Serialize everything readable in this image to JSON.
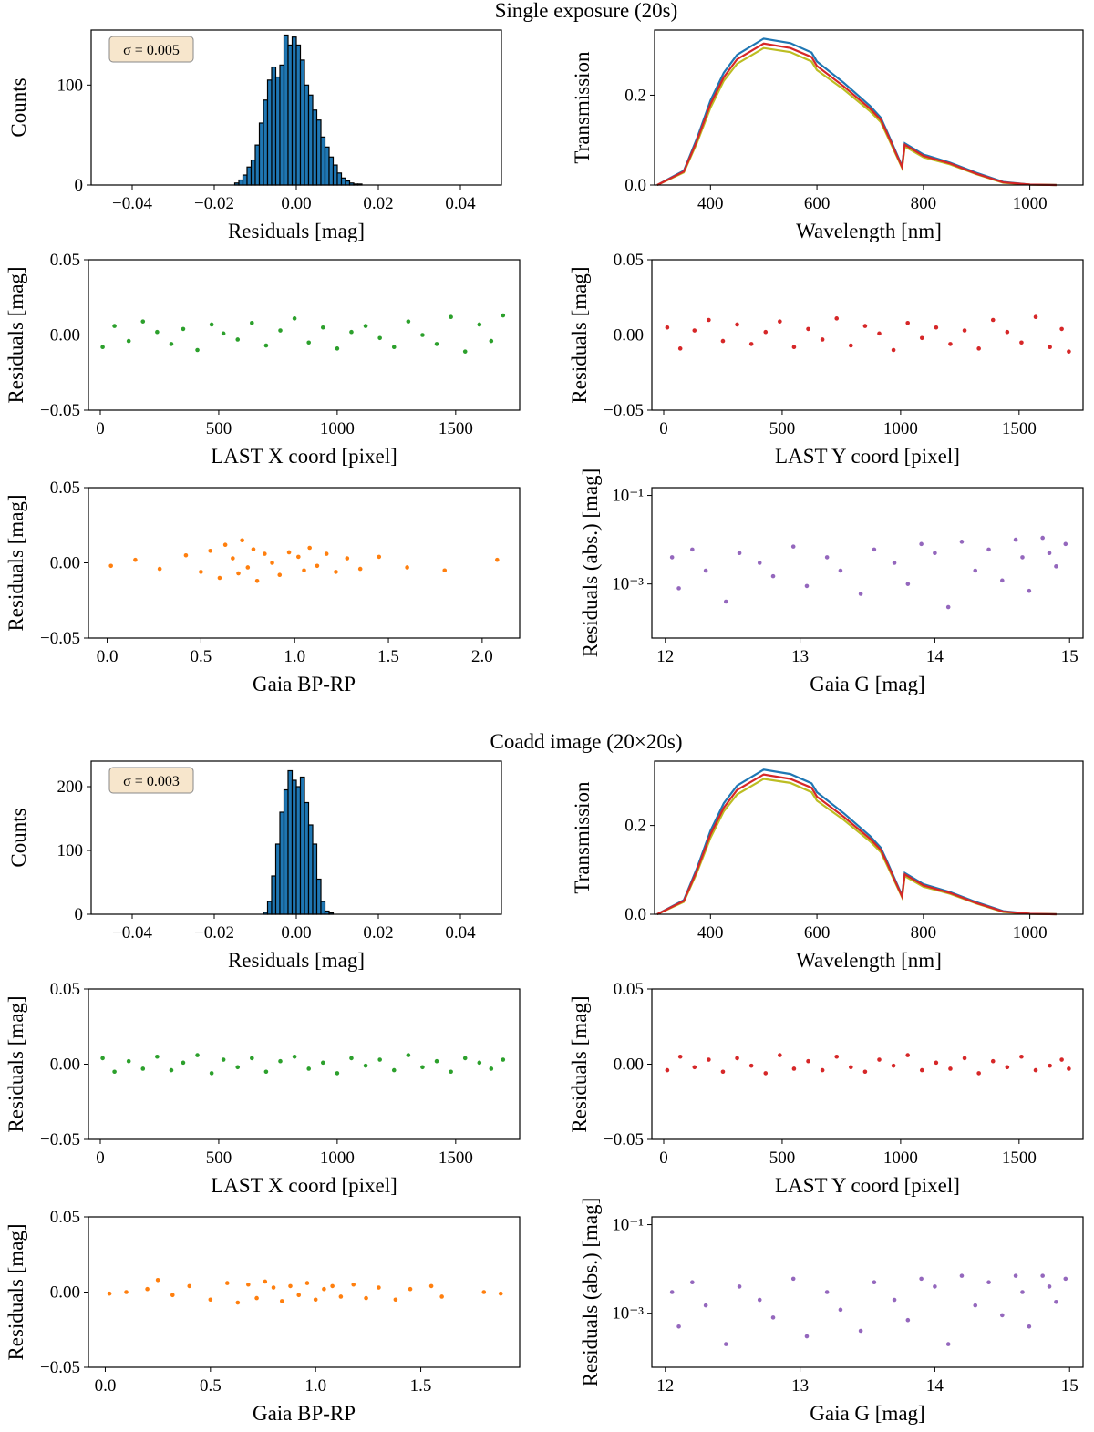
{
  "chart_data": [
    {
      "type": "histogram",
      "title": "Single exposure (20s)",
      "annotation": "σ = 0.005",
      "xlabel": "Residuals [mag]",
      "ylabel": "Counts",
      "color": "#1f77b4",
      "bins": [
        -0.015,
        -0.014,
        -0.013,
        -0.012,
        -0.011,
        -0.01,
        -0.009,
        -0.008,
        -0.007,
        -0.006,
        -0.005,
        -0.004,
        -0.003,
        -0.002,
        -0.001,
        0,
        0.001,
        0.002,
        0.003,
        0.004,
        0.005,
        0.006,
        0.007,
        0.008,
        0.009,
        0.01,
        0.011,
        0.012,
        0.013,
        0.014,
        0.015,
        0.016
      ],
      "counts": [
        2,
        5,
        10,
        18,
        25,
        40,
        62,
        85,
        105,
        118,
        108,
        120,
        150,
        140,
        148,
        140,
        125,
        100,
        90,
        75,
        65,
        48,
        38,
        28,
        20,
        12,
        7,
        4,
        2,
        1,
        1
      ],
      "xlim": [
        -0.05,
        0.05
      ],
      "xticks": [
        {
          "value": -0.04,
          "label": "−0.04"
        },
        {
          "value": -0.02,
          "label": "−0.02"
        },
        {
          "value": 0,
          "label": "0.00"
        },
        {
          "value": 0.02,
          "label": "0.02"
        },
        {
          "value": 0.04,
          "label": "0.04"
        }
      ],
      "ylim": [
        0,
        155
      ],
      "yticks": [
        0,
        100
      ]
    },
    {
      "type": "line",
      "xlabel": "Wavelength [nm]",
      "ylabel": "Transmission",
      "x": [
        300,
        350,
        375,
        400,
        425,
        450,
        500,
        550,
        590,
        600,
        650,
        700,
        720,
        730,
        760,
        765,
        800,
        850,
        900,
        950,
        1000,
        1050
      ],
      "series": [
        {
          "color": "#1f77b4",
          "values": [
            0,
            0.032,
            0.105,
            0.188,
            0.25,
            0.29,
            0.326,
            0.316,
            0.295,
            0.275,
            0.228,
            0.176,
            0.15,
            0.124,
            0.042,
            0.093,
            0.068,
            0.05,
            0.027,
            0.007,
            0.001,
            0
          ]
        },
        {
          "color": "#bcbd22",
          "values": [
            0,
            0.028,
            0.095,
            0.172,
            0.232,
            0.27,
            0.305,
            0.296,
            0.275,
            0.256,
            0.213,
            0.164,
            0.14,
            0.115,
            0.038,
            0.086,
            0.062,
            0.046,
            0.024,
            0.005,
            0.001,
            0
          ]
        },
        {
          "color": "#d62728",
          "values": [
            0,
            0.03,
            0.1,
            0.18,
            0.24,
            0.28,
            0.315,
            0.305,
            0.285,
            0.265,
            0.22,
            0.17,
            0.145,
            0.12,
            0.04,
            0.09,
            0.065,
            0.048,
            0.025,
            0.006,
            0.001,
            0
          ]
        }
      ],
      "xlim": [
        295,
        1100
      ],
      "xticks": [
        400,
        600,
        800,
        1000
      ],
      "ylim": [
        0,
        0.345
      ],
      "yticks": [
        {
          "value": 0,
          "label": "0.0"
        },
        {
          "value": 0.2,
          "label": "0.2"
        }
      ]
    },
    {
      "type": "scatter",
      "xlabel": "LAST X coord [pixel]",
      "ylabel": "Residuals [mag]",
      "color": "#2ca02c",
      "x": [
        10,
        60,
        120,
        180,
        240,
        300,
        350,
        410,
        470,
        520,
        580,
        640,
        700,
        760,
        820,
        880,
        940,
        1000,
        1060,
        1120,
        1180,
        1240,
        1300,
        1360,
        1420,
        1480,
        1540,
        1600,
        1650,
        1700
      ],
      "values": [
        -0.008,
        0.006,
        -0.004,
        0.009,
        0.002,
        -0.006,
        0.004,
        -0.01,
        0.007,
        0.001,
        -0.003,
        0.008,
        -0.007,
        0.003,
        0.011,
        -0.005,
        0.005,
        -0.009,
        0.002,
        0.006,
        -0.002,
        -0.008,
        0.009,
        0,
        -0.006,
        0.012,
        -0.011,
        0.007,
        -0.004,
        0.013
      ],
      "xlim": [
        -50,
        1770
      ],
      "xticks": [
        0,
        500,
        1000,
        1500
      ],
      "ylim": [
        -0.05,
        0.05
      ],
      "yticks": [
        {
          "value": -0.05,
          "label": "−0.05"
        },
        {
          "value": 0,
          "label": "0.00"
        },
        {
          "value": 0.05,
          "label": "0.05"
        }
      ]
    },
    {
      "type": "scatter",
      "xlabel": "LAST Y coord [pixel]",
      "ylabel": "Residuals [mag]",
      "color": "#d62728",
      "x": [
        15,
        70,
        130,
        190,
        250,
        310,
        370,
        430,
        490,
        550,
        610,
        670,
        730,
        790,
        850,
        910,
        970,
        1030,
        1090,
        1150,
        1210,
        1270,
        1330,
        1390,
        1450,
        1510,
        1570,
        1630,
        1680,
        1710
      ],
      "values": [
        0.005,
        -0.009,
        0.003,
        0.01,
        -0.004,
        0.007,
        -0.006,
        0.002,
        0.009,
        -0.008,
        0.004,
        -0.003,
        0.011,
        -0.007,
        0.006,
        0.001,
        -0.01,
        0.008,
        -0.002,
        0.005,
        -0.006,
        0.003,
        -0.009,
        0.01,
        0.002,
        -0.005,
        0.012,
        -0.008,
        0.004,
        -0.011
      ],
      "xlim": [
        -50,
        1770
      ],
      "xticks": [
        0,
        500,
        1000,
        1500
      ],
      "ylim": [
        -0.05,
        0.05
      ],
      "yticks": [
        {
          "value": -0.05,
          "label": "−0.05"
        },
        {
          "value": 0,
          "label": "0.00"
        },
        {
          "value": 0.05,
          "label": "0.05"
        }
      ]
    },
    {
      "type": "scatter",
      "xlabel": "Gaia BP-RP",
      "ylabel": "Residuals [mag]",
      "color": "#ff7f0e",
      "x": [
        0.02,
        0.15,
        0.28,
        0.42,
        0.5,
        0.55,
        0.6,
        0.63,
        0.67,
        0.7,
        0.72,
        0.75,
        0.78,
        0.8,
        0.84,
        0.88,
        0.92,
        0.97,
        1.02,
        1.05,
        1.08,
        1.12,
        1.17,
        1.22,
        1.28,
        1.35,
        1.45,
        1.6,
        1.8,
        2.08
      ],
      "values": [
        -0.002,
        0.002,
        -0.004,
        0.005,
        -0.006,
        0.008,
        -0.01,
        0.012,
        0.003,
        -0.007,
        0.015,
        -0.003,
        0.009,
        -0.012,
        0.006,
        0,
        -0.008,
        0.007,
        0.004,
        -0.005,
        0.01,
        -0.002,
        0.006,
        -0.006,
        0.003,
        -0.004,
        0.004,
        -0.003,
        -0.005,
        0.002
      ],
      "xlim": [
        -0.1,
        2.2
      ],
      "xticks": [
        {
          "value": 0,
          "label": "0.0"
        },
        0.5,
        {
          "value": 1,
          "label": "1.0"
        },
        1.5,
        {
          "value": 2,
          "label": "2.0"
        }
      ],
      "ylim": [
        -0.05,
        0.05
      ],
      "yticks": [
        {
          "value": -0.05,
          "label": "−0.05"
        },
        {
          "value": 0,
          "label": "0.00"
        },
        {
          "value": 0.05,
          "label": "0.05"
        }
      ]
    },
    {
      "type": "scatter",
      "xlabel": "Gaia G [mag]",
      "ylabel": "Residuals (abs.) [mag]",
      "color": "#9467bd",
      "ylog": true,
      "x": [
        12.05,
        12.1,
        12.2,
        12.3,
        12.45,
        12.55,
        12.7,
        12.8,
        12.95,
        13.05,
        13.2,
        13.3,
        13.45,
        13.55,
        13.7,
        13.8,
        13.9,
        14,
        14.1,
        14.2,
        14.3,
        14.4,
        14.5,
        14.6,
        14.65,
        14.7,
        14.8,
        14.85,
        14.9,
        14.97
      ],
      "values": [
        0.004,
        0.0008,
        0.006,
        0.002,
        0.0004,
        0.005,
        0.003,
        0.0015,
        0.007,
        0.0009,
        0.004,
        0.002,
        0.0006,
        0.006,
        0.003,
        0.001,
        0.008,
        0.005,
        0.0003,
        0.009,
        0.002,
        0.006,
        0.0012,
        0.01,
        0.004,
        0.0007,
        0.011,
        0.005,
        0.0025,
        0.008
      ],
      "xlim": [
        11.9,
        15.1
      ],
      "xticks": [
        12,
        13,
        14,
        15
      ],
      "ylim": [
        6e-05,
        0.15
      ],
      "yticks": [
        {
          "value": 0.1,
          "label": "10⁻¹"
        },
        {
          "value": 0.001,
          "label": "10⁻³"
        }
      ]
    },
    {
      "type": "histogram",
      "title": "Coadd image (20×20s)",
      "annotation": "σ = 0.003",
      "xlabel": "Residuals [mag]",
      "ylabel": "Counts",
      "color": "#1f77b4",
      "bins": [
        -0.008,
        -0.007,
        -0.006,
        -0.005,
        -0.004,
        -0.003,
        -0.002,
        -0.001,
        0,
        0.001,
        0.002,
        0.003,
        0.004,
        0.005,
        0.006,
        0.007,
        0.008,
        0.009
      ],
      "counts": [
        3,
        20,
        60,
        110,
        160,
        195,
        225,
        210,
        200,
        215,
        175,
        140,
        110,
        55,
        20,
        5,
        2
      ],
      "xlim": [
        -0.05,
        0.05
      ],
      "xticks": [
        {
          "value": -0.04,
          "label": "−0.04"
        },
        {
          "value": -0.02,
          "label": "−0.02"
        },
        {
          "value": 0,
          "label": "0.00"
        },
        {
          "value": 0.02,
          "label": "0.02"
        },
        {
          "value": 0.04,
          "label": "0.04"
        }
      ],
      "ylim": [
        0,
        240
      ],
      "yticks": [
        0,
        100,
        200
      ]
    },
    {
      "type": "line",
      "xlabel": "Wavelength [nm]",
      "ylabel": "Transmission",
      "x": [
        300,
        350,
        375,
        400,
        425,
        450,
        500,
        550,
        590,
        600,
        650,
        700,
        720,
        730,
        760,
        765,
        800,
        850,
        900,
        950,
        1000,
        1050
      ],
      "series": [
        {
          "color": "#1f77b4",
          "values": [
            0,
            0.032,
            0.105,
            0.188,
            0.25,
            0.29,
            0.326,
            0.316,
            0.295,
            0.275,
            0.228,
            0.176,
            0.15,
            0.124,
            0.042,
            0.093,
            0.068,
            0.05,
            0.027,
            0.007,
            0.001,
            0
          ]
        },
        {
          "color": "#bcbd22",
          "values": [
            0,
            0.028,
            0.095,
            0.172,
            0.232,
            0.27,
            0.305,
            0.296,
            0.275,
            0.256,
            0.213,
            0.164,
            0.14,
            0.115,
            0.038,
            0.086,
            0.062,
            0.046,
            0.024,
            0.005,
            0.001,
            0
          ]
        },
        {
          "color": "#d62728",
          "values": [
            0,
            0.03,
            0.1,
            0.18,
            0.24,
            0.28,
            0.315,
            0.305,
            0.285,
            0.265,
            0.22,
            0.17,
            0.145,
            0.12,
            0.04,
            0.09,
            0.065,
            0.048,
            0.025,
            0.006,
            0.001,
            0
          ]
        }
      ],
      "xlim": [
        295,
        1100
      ],
      "xticks": [
        400,
        600,
        800,
        1000
      ],
      "ylim": [
        0,
        0.345
      ],
      "yticks": [
        {
          "value": 0,
          "label": "0.0"
        },
        {
          "value": 0.2,
          "label": "0.2"
        }
      ]
    },
    {
      "type": "scatter",
      "xlabel": "LAST X coord [pixel]",
      "ylabel": "Residuals [mag]",
      "color": "#2ca02c",
      "x": [
        10,
        60,
        120,
        180,
        240,
        300,
        350,
        410,
        470,
        520,
        580,
        640,
        700,
        760,
        820,
        880,
        940,
        1000,
        1060,
        1120,
        1180,
        1240,
        1300,
        1360,
        1420,
        1480,
        1540,
        1600,
        1650,
        1700
      ],
      "values": [
        0.004,
        -0.005,
        0.002,
        -0.003,
        0.005,
        -0.004,
        0.001,
        0.006,
        -0.006,
        0.003,
        -0.002,
        0.004,
        -0.005,
        0.002,
        0.005,
        -0.003,
        0.001,
        -0.006,
        0.004,
        -0.001,
        0.003,
        -0.004,
        0.006,
        -0.002,
        0.002,
        -0.005,
        0.004,
        0.001,
        -0.003,
        0.003
      ],
      "xlim": [
        -50,
        1770
      ],
      "xticks": [
        0,
        500,
        1000,
        1500
      ],
      "ylim": [
        -0.05,
        0.05
      ],
      "yticks": [
        {
          "value": -0.05,
          "label": "−0.05"
        },
        {
          "value": 0,
          "label": "0.00"
        },
        {
          "value": 0.05,
          "label": "0.05"
        }
      ]
    },
    {
      "type": "scatter",
      "xlabel": "LAST Y coord [pixel]",
      "ylabel": "Residuals [mag]",
      "color": "#d62728",
      "x": [
        15,
        70,
        130,
        190,
        250,
        310,
        370,
        430,
        490,
        550,
        610,
        670,
        730,
        790,
        850,
        910,
        970,
        1030,
        1090,
        1150,
        1210,
        1270,
        1330,
        1390,
        1450,
        1510,
        1570,
        1630,
        1680,
        1710
      ],
      "values": [
        -0.004,
        0.005,
        -0.002,
        0.003,
        -0.005,
        0.004,
        -0.001,
        -0.006,
        0.006,
        -0.003,
        0.002,
        -0.004,
        0.005,
        -0.002,
        -0.005,
        0.003,
        -0.001,
        0.006,
        -0.004,
        0.001,
        -0.003,
        0.004,
        -0.006,
        0.002,
        -0.002,
        0.005,
        -0.004,
        -0.001,
        0.003,
        -0.003
      ],
      "xlim": [
        -50,
        1770
      ],
      "xticks": [
        0,
        500,
        1000,
        1500
      ],
      "ylim": [
        -0.05,
        0.05
      ],
      "yticks": [
        {
          "value": -0.05,
          "label": "−0.05"
        },
        {
          "value": 0,
          "label": "0.00"
        },
        {
          "value": 0.05,
          "label": "0.05"
        }
      ]
    },
    {
      "type": "scatter",
      "xlabel": "Gaia BP-RP",
      "ylabel": "Residuals [mag]",
      "color": "#ff7f0e",
      "x": [
        0.02,
        0.1,
        0.2,
        0.25,
        0.32,
        0.4,
        0.5,
        0.58,
        0.63,
        0.68,
        0.72,
        0.76,
        0.8,
        0.84,
        0.88,
        0.92,
        0.96,
        1,
        1.04,
        1.08,
        1.12,
        1.18,
        1.24,
        1.3,
        1.38,
        1.45,
        1.55,
        1.6,
        1.8,
        1.88
      ],
      "values": [
        -0.001,
        0,
        0.002,
        0.008,
        -0.002,
        0.004,
        -0.005,
        0.006,
        -0.007,
        0.005,
        -0.004,
        0.007,
        0.003,
        -0.006,
        0.004,
        -0.002,
        0.006,
        -0.005,
        0.002,
        0.004,
        -0.003,
        0.005,
        -0.004,
        0.003,
        -0.005,
        0.002,
        0.004,
        -0.003,
        0,
        -0.001
      ],
      "xlim": [
        -0.08,
        1.97
      ],
      "xticks": [
        {
          "value": 0,
          "label": "0.0"
        },
        0.5,
        {
          "value": 1,
          "label": "1.0"
        },
        1.5
      ],
      "ylim": [
        -0.05,
        0.05
      ],
      "yticks": [
        {
          "value": -0.05,
          "label": "−0.05"
        },
        {
          "value": 0,
          "label": "0.00"
        },
        {
          "value": 0.05,
          "label": "0.05"
        }
      ]
    },
    {
      "type": "scatter",
      "xlabel": "Gaia G [mag]",
      "ylabel": "Residuals (abs.) [mag]",
      "color": "#9467bd",
      "ylog": true,
      "x": [
        12.05,
        12.1,
        12.2,
        12.3,
        12.45,
        12.55,
        12.7,
        12.8,
        12.95,
        13.05,
        13.2,
        13.3,
        13.45,
        13.55,
        13.7,
        13.8,
        13.9,
        14,
        14.1,
        14.2,
        14.3,
        14.4,
        14.5,
        14.6,
        14.65,
        14.7,
        14.8,
        14.85,
        14.9,
        14.97
      ],
      "values": [
        0.003,
        0.0005,
        0.005,
        0.0015,
        0.0002,
        0.004,
        0.002,
        0.0008,
        0.006,
        0.0003,
        0.003,
        0.0012,
        0.0004,
        0.005,
        0.002,
        0.0007,
        0.006,
        0.004,
        0.0002,
        0.007,
        0.0015,
        0.005,
        0.0009,
        0.007,
        0.003,
        0.0005,
        0.007,
        0.004,
        0.0018,
        0.006
      ],
      "xlim": [
        11.9,
        15.1
      ],
      "xticks": [
        12,
        13,
        14,
        15
      ],
      "ylim": [
        6e-05,
        0.15
      ],
      "yticks": [
        {
          "value": 0.1,
          "label": "10⁻¹"
        },
        {
          "value": 0.001,
          "label": "10⁻³"
        }
      ]
    }
  ]
}
